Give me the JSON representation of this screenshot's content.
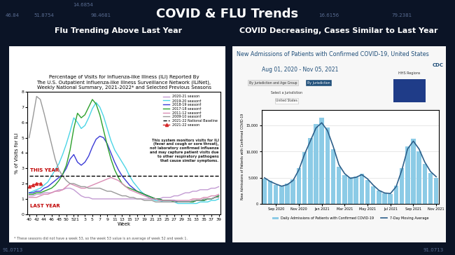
{
  "title": "COVID & FLU Trends",
  "background_numbers": [
    "46.84",
    "14.6854",
    "51.8754",
    "98.4681",
    "16.6156",
    "79.2381",
    "91.0713",
    "91.0713"
  ],
  "chart_data": [
    {
      "type": "line",
      "heading": "Flu Trending Above Last Year",
      "title": "Percentage of Visits for Influenza-like Illness (ILI) Reported By\nThe U.S. Outpatient Influenza-like Illness Surveillance Network (ILINet),\nWeekly National Summary, 2021-2022* and Selected Previous Seasons",
      "x_label": "Week",
      "y_label": "% of Visits for ILI",
      "categories": [
        "40",
        null,
        "42",
        null,
        "44",
        null,
        "46",
        null,
        "48",
        null,
        "50",
        null,
        "52",
        "1",
        null,
        "3",
        null,
        "5",
        null,
        "7",
        null,
        "9",
        null,
        "11",
        null,
        "13",
        null,
        "15",
        null,
        "17",
        null,
        "19",
        null,
        "21",
        null,
        "23",
        null,
        "25",
        null,
        "27",
        null,
        "29",
        null,
        "31",
        null,
        "33",
        null,
        "35",
        null,
        "37",
        null,
        "39"
      ],
      "ylim": [
        0,
        8
      ],
      "yticks": [
        0,
        1,
        2,
        3,
        4,
        5,
        6,
        7,
        8
      ],
      "grid": false,
      "legend": "upper right",
      "series": [
        {
          "name": "2020-21 season",
          "color": "#c39bd3",
          "line_style": "solid",
          "values": [
            1.2,
            1.2,
            1.3,
            1.3,
            1.4,
            1.4,
            1.4,
            1.5,
            1.6,
            1.6,
            1.7,
            1.7,
            1.6,
            1.4,
            1.2,
            1.1,
            1.1,
            1.0,
            1.0,
            1.0,
            1.0,
            1.0,
            1.0,
            1.0,
            1.0,
            1.0,
            1.0,
            1.0,
            1.0,
            1.0,
            1.0,
            1.0,
            1.0,
            1.0,
            1.0,
            1.0,
            1.1,
            1.1,
            1.1,
            1.2,
            1.2,
            1.3,
            1.4,
            1.4,
            1.5,
            1.5,
            1.6,
            1.6,
            1.6,
            1.7,
            1.7,
            1.8
          ]
        },
        {
          "name": "2019-20 season†",
          "color": "#4bd5e6",
          "line_style": "solid",
          "values": [
            1.4,
            1.5,
            1.6,
            1.7,
            1.9,
            2.1,
            2.5,
            2.9,
            3.3,
            3.9,
            4.6,
            5.4,
            6.3,
            6.0,
            5.6,
            5.8,
            6.3,
            6.9,
            7.3,
            7.0,
            6.4,
            5.6,
            4.8,
            4.2,
            3.8,
            3.4,
            3.0,
            2.5,
            2.1,
            1.8,
            1.5,
            1.3,
            1.1,
            1.0,
            0.9,
            0.9,
            0.8,
            0.8,
            0.8,
            0.8,
            0.7,
            0.7,
            0.7,
            0.7,
            0.7,
            0.7,
            0.8,
            0.8,
            0.8,
            0.9,
            0.9,
            1.0
          ]
        },
        {
          "name": "2018-19 season†",
          "color": "#3b3bd6",
          "line_style": "solid",
          "values": [
            1.4,
            1.4,
            1.5,
            1.5,
            1.7,
            1.8,
            2.0,
            2.2,
            2.4,
            2.6,
            3.0,
            3.6,
            3.9,
            3.4,
            3.2,
            3.4,
            3.8,
            4.4,
            4.9,
            5.1,
            5.0,
            4.6,
            4.0,
            3.4,
            2.9,
            2.5,
            2.2,
            1.9,
            1.7,
            1.5,
            1.4,
            1.3,
            1.2,
            1.1,
            1.0,
            1.0,
            0.9,
            0.9,
            0.9,
            0.9,
            0.8,
            0.8,
            0.8,
            0.8,
            0.8,
            0.9,
            0.9,
            0.9,
            1.0,
            1.0,
            1.1,
            1.2
          ]
        },
        {
          "name": "2017-18 season†",
          "color": "#2ca02c",
          "line_style": "solid",
          "values": [
            1.3,
            1.3,
            1.4,
            1.4,
            1.5,
            1.6,
            1.7,
            1.9,
            2.2,
            2.6,
            3.2,
            4.2,
            5.6,
            6.6,
            6.3,
            6.5,
            7.0,
            7.5,
            7.2,
            6.5,
            5.5,
            4.5,
            3.6,
            2.9,
            2.4,
            2.0,
            1.8,
            1.7,
            1.6,
            1.5,
            1.4,
            1.3,
            1.2,
            1.1,
            1.0,
            1.0,
            0.9,
            0.9,
            0.9,
            0.8,
            0.8,
            0.8,
            0.8,
            0.8,
            0.8,
            0.9,
            0.9,
            0.9,
            1.0,
            1.0,
            1.1,
            1.2
          ]
        },
        {
          "name": "2011-12 season†",
          "color": "#d98cb3",
          "line_style": "solid",
          "values": [
            1.1,
            1.1,
            1.1,
            1.2,
            1.3,
            1.3,
            1.4,
            1.5,
            1.5,
            1.6,
            1.8,
            2.0,
            1.9,
            1.8,
            1.7,
            1.7,
            1.8,
            1.9,
            2.0,
            2.1,
            2.2,
            2.3,
            2.4,
            2.3,
            2.2,
            2.0,
            1.8,
            1.6,
            1.5,
            1.4,
            1.3,
            1.2,
            1.1,
            1.0,
            1.0,
            0.9,
            0.9,
            0.9,
            0.9,
            0.9,
            0.9,
            0.9,
            0.9,
            0.9,
            1.0,
            1.0,
            1.0,
            1.1,
            1.1,
            1.2,
            1.2,
            1.3
          ]
        },
        {
          "name": "2009-10 season†",
          "color": "#999999",
          "line_style": "solid",
          "values": [
            5.0,
            6.3,
            7.7,
            7.5,
            6.6,
            5.6,
            4.6,
            3.6,
            2.9,
            2.5,
            2.2,
            2.0,
            2.0,
            1.9,
            1.8,
            1.8,
            1.7,
            1.7,
            1.7,
            1.7,
            1.6,
            1.5,
            1.5,
            1.4,
            1.3,
            1.2,
            1.2,
            1.1,
            1.1,
            1.0,
            1.0,
            0.9,
            0.9,
            0.9,
            0.8,
            0.8,
            0.8,
            0.8,
            0.8,
            0.8,
            0.8,
            0.8,
            0.8,
            0.8,
            0.9,
            0.9,
            0.9,
            1.0,
            1.0,
            1.0,
            1.1,
            1.1
          ]
        },
        {
          "name": "2021-22 National Baseline",
          "color": "#000000",
          "line_style": "dashed",
          "values": [
            2.5,
            2.5,
            2.5,
            2.5,
            2.5,
            2.5,
            2.5,
            2.5,
            2.5,
            2.5,
            2.5,
            2.5,
            2.5,
            2.5,
            2.5,
            2.5,
            2.5,
            2.5,
            2.5,
            2.5,
            2.5,
            2.5,
            2.5,
            2.5,
            2.5,
            2.5,
            2.5,
            2.5,
            2.5,
            2.5,
            2.5,
            2.5,
            2.5,
            2.5,
            2.5,
            2.5,
            2.5,
            2.5,
            2.5,
            2.5,
            2.5,
            2.5,
            2.5,
            2.5,
            2.5,
            2.5,
            2.5,
            2.5,
            2.5,
            2.5,
            2.5,
            2.5
          ]
        },
        {
          "name": "2021-22 season",
          "color": "#d62728",
          "line_style": "solid",
          "marker": "triangle",
          "values": [
            1.8,
            1.9,
            2.0,
            2.0,
            null,
            null,
            null,
            null,
            null,
            null,
            null,
            null,
            null,
            null,
            null,
            null,
            null,
            null,
            null,
            null,
            null,
            null,
            null,
            null,
            null,
            null,
            null,
            null,
            null,
            null,
            null,
            null,
            null,
            null,
            null,
            null,
            null,
            null,
            null,
            null,
            null,
            null,
            null,
            null,
            null,
            null,
            null,
            null,
            null,
            null,
            null,
            null
          ]
        }
      ],
      "annotations": [
        "THIS YEAR",
        "LAST YEAR",
        "This system monitors visits for ILI\n(fever and cough or sore throat),\nnot laboratory confirmed influenza\nand may capture patient visits due\nto other respiratory pathogens\nthat cause similar symptoms.",
        "* These seasons did not have a week 53, so the week 53 value is an average of week 52 and week 1."
      ]
    },
    {
      "type": "bar",
      "heading": "COVID Decreasing, Cases Similar to Last Year",
      "title": "New Admissions of Patients with Confirmed COVID-19, United States",
      "subtitle": "Aug 01, 2020 - Nov 05, 2021",
      "y_label": "New Admissions of Patients with Confirmed COVID-19",
      "categories": [
        null,
        null,
        "Sep 2020",
        null,
        null,
        null,
        "Nov 2020",
        null,
        null,
        null,
        "Jan 2021",
        null,
        null,
        null,
        "Mar 2021",
        null,
        null,
        null,
        "May 2021",
        null,
        null,
        null,
        "Jul 2021",
        null,
        null,
        null,
        "Sep 2021",
        null,
        null,
        null,
        "Nov 2021"
      ],
      "ylim": [
        0,
        18000
      ],
      "yticks": [
        0,
        {
          "value": 5000,
          "label": "5,000"
        },
        {
          "value": 10000,
          "label": "10,000"
        },
        {
          "value": 15000,
          "label": "15,000"
        }
      ],
      "grid": true,
      "legend": "upper center",
      "series": [
        {
          "name": "Daily Admissions of Patients with Confirmed COVID-19",
          "type": "bar",
          "color": "#8ccbe6",
          "values": [
            4800,
            4500,
            3600,
            3500,
            3900,
            4700,
            6900,
            9900,
            12600,
            15200,
            16400,
            14600,
            10500,
            7100,
            5500,
            5100,
            5300,
            5800,
            4600,
            3400,
            2500,
            2000,
            1900,
            3500,
            6900,
            11000,
            12500,
            10100,
            7700,
            5900,
            5000
          ]
        },
        {
          "name": "7-Day Moving Average",
          "type": "line",
          "color": "#2d5f8a",
          "values": [
            5000,
            4300,
            3800,
            3400,
            3700,
            4500,
            6500,
            9500,
            12000,
            14500,
            15500,
            14000,
            11000,
            7500,
            5800,
            4900,
            5100,
            5600,
            4800,
            3600,
            2600,
            2100,
            2000,
            3300,
            6500,
            10500,
            12000,
            10500,
            8000,
            6200,
            5200
          ]
        }
      ],
      "annotations": [
        "CDC",
        "HHS Regions",
        "By Jurisdiction and Age Group",
        "By Jurisdiction",
        "Select a Jurisdiction",
        "United States"
      ]
    }
  ]
}
